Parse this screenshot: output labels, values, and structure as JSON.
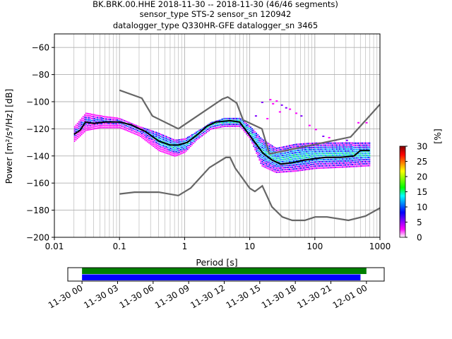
{
  "chart_data": {
    "type": "line",
    "title_lines": [
      "BK.BRK.00.HHE   2018-11-30 -- 2018-11-30  (46/46 segments)",
      "sensor_type STS-2 sensor_sn 120942",
      "datalogger_type Q330HR-GFE datalogger_sn 3465"
    ],
    "xlabel": "Period [s]",
    "ylabel": "Power [m²/s⁴/Hz] [dB]",
    "x_scale": "log",
    "xlim": [
      0.01,
      1000
    ],
    "ylim": [
      -200,
      -50
    ],
    "x_ticks": [
      0.01,
      0.1,
      1,
      10,
      100,
      1000
    ],
    "x_tick_labels": [
      "0.01",
      "0.1",
      "1",
      "10",
      "100",
      "1000"
    ],
    "y_ticks": [
      -60,
      -80,
      -100,
      -120,
      -140,
      -160,
      -180,
      -200
    ],
    "y_tick_labels": [
      "−60",
      "−80",
      "−100",
      "−120",
      "−140",
      "−160",
      "−180",
      "−200"
    ],
    "grid": true,
    "colorbar": {
      "label": "[%]",
      "range": [
        0,
        30
      ],
      "ticks": [
        "0",
        "5",
        "10",
        "15",
        "20",
        "25",
        "30"
      ]
    },
    "series": [
      {
        "role": "noise-model-high",
        "color": "#666666",
        "x": [
          0.1,
          0.22,
          0.32,
          0.8,
          3.8,
          4.6,
          6.3,
          7.9,
          15.4,
          20,
          354.8,
          10000
        ],
        "y": [
          -91.5,
          -97.4,
          -110.5,
          -120,
          -98,
          -96.5,
          -101,
          -113.5,
          -120,
          -138.5,
          -126.0,
          -48.5
        ]
      },
      {
        "role": "noise-model-low",
        "color": "#666666",
        "x": [
          0.1,
          0.17,
          0.4,
          0.8,
          1.24,
          2.4,
          4.3,
          5.0,
          6.0,
          10.0,
          12.0,
          15.6,
          21.9,
          31.6,
          45,
          70,
          101,
          154,
          328,
          600,
          10000
        ],
        "y": [
          -168,
          -166.7,
          -166.7,
          -169.2,
          -163.7,
          -148.6,
          -141.1,
          -141.1,
          -149.0,
          -163.8,
          -166.2,
          -162.1,
          -177.5,
          -185.0,
          -187.5,
          -187.5,
          -185.0,
          -185.0,
          -187.5,
          -184.4,
          -151.5
        ]
      },
      {
        "role": "mean",
        "color": "#000000",
        "x": [
          0.02,
          0.025,
          0.03,
          0.04,
          0.06,
          0.1,
          0.15,
          0.25,
          0.4,
          0.6,
          0.8,
          1.1,
          1.6,
          2.2,
          3,
          5,
          7,
          9,
          12,
          16,
          22,
          30,
          45,
          70,
          100,
          150,
          250,
          400,
          500,
          700
        ],
        "y": [
          -124,
          -121,
          -115,
          -116,
          -115,
          -115,
          -117,
          -122,
          -129,
          -132,
          -132,
          -130,
          -124,
          -118,
          -115,
          -114,
          -115,
          -122,
          -130,
          -138,
          -143,
          -146,
          -145,
          -143,
          -142,
          -141,
          -141,
          -140,
          -136,
          -136
        ]
      }
    ],
    "psd_density": {
      "bands": [
        {
          "periods": [
            0.02,
            0.03,
            0.05,
            0.1,
            0.2,
            0.4,
            0.7,
            1,
            1.5,
            2.5,
            4,
            7,
            10,
            15,
            25,
            50,
            100,
            300,
            700
          ],
          "ymin": [
            -130,
            -122,
            -120,
            -120,
            -126,
            -137,
            -141,
            -138,
            -129,
            -121,
            -119,
            -119,
            -128,
            -148,
            -153,
            -152,
            -150,
            -149,
            -148
          ],
          "ymax": [
            -118,
            -108,
            -110,
            -112,
            -118,
            -123,
            -128,
            -127,
            -122,
            -115,
            -112,
            -112,
            -118,
            -127,
            -134,
            -131,
            -130,
            -130,
            -130
          ]
        }
      ],
      "scatter_outliers": {
        "x": [
          15,
          20,
          25,
          30,
          40,
          50,
          60,
          80,
          100,
          130,
          160,
          200,
          300,
          450,
          600,
          12,
          18,
          28,
          35,
          22
        ],
        "y": [
          -100,
          -98,
          -99,
          -102,
          -105,
          -108,
          -110,
          -117,
          -120,
          -125,
          -126,
          -128,
          -128,
          -115,
          -115,
          -110,
          -112,
          -107,
          -104,
          -101
        ]
      }
    }
  },
  "timeline": {
    "x_tick_labels": [
      "11-30 00",
      "11-30 03",
      "11-30 06",
      "11-30 09",
      "11-30 12",
      "11-30 15",
      "11-30 18",
      "11-30 21",
      "12-01 00"
    ],
    "hours_range": [
      -1.2,
      25.5
    ],
    "bars": [
      {
        "color": "#008000",
        "start_hour": 0,
        "end_hour": 24.0
      },
      {
        "color": "#0000ff",
        "start_hour": 0,
        "end_hour": 23.5
      }
    ]
  }
}
